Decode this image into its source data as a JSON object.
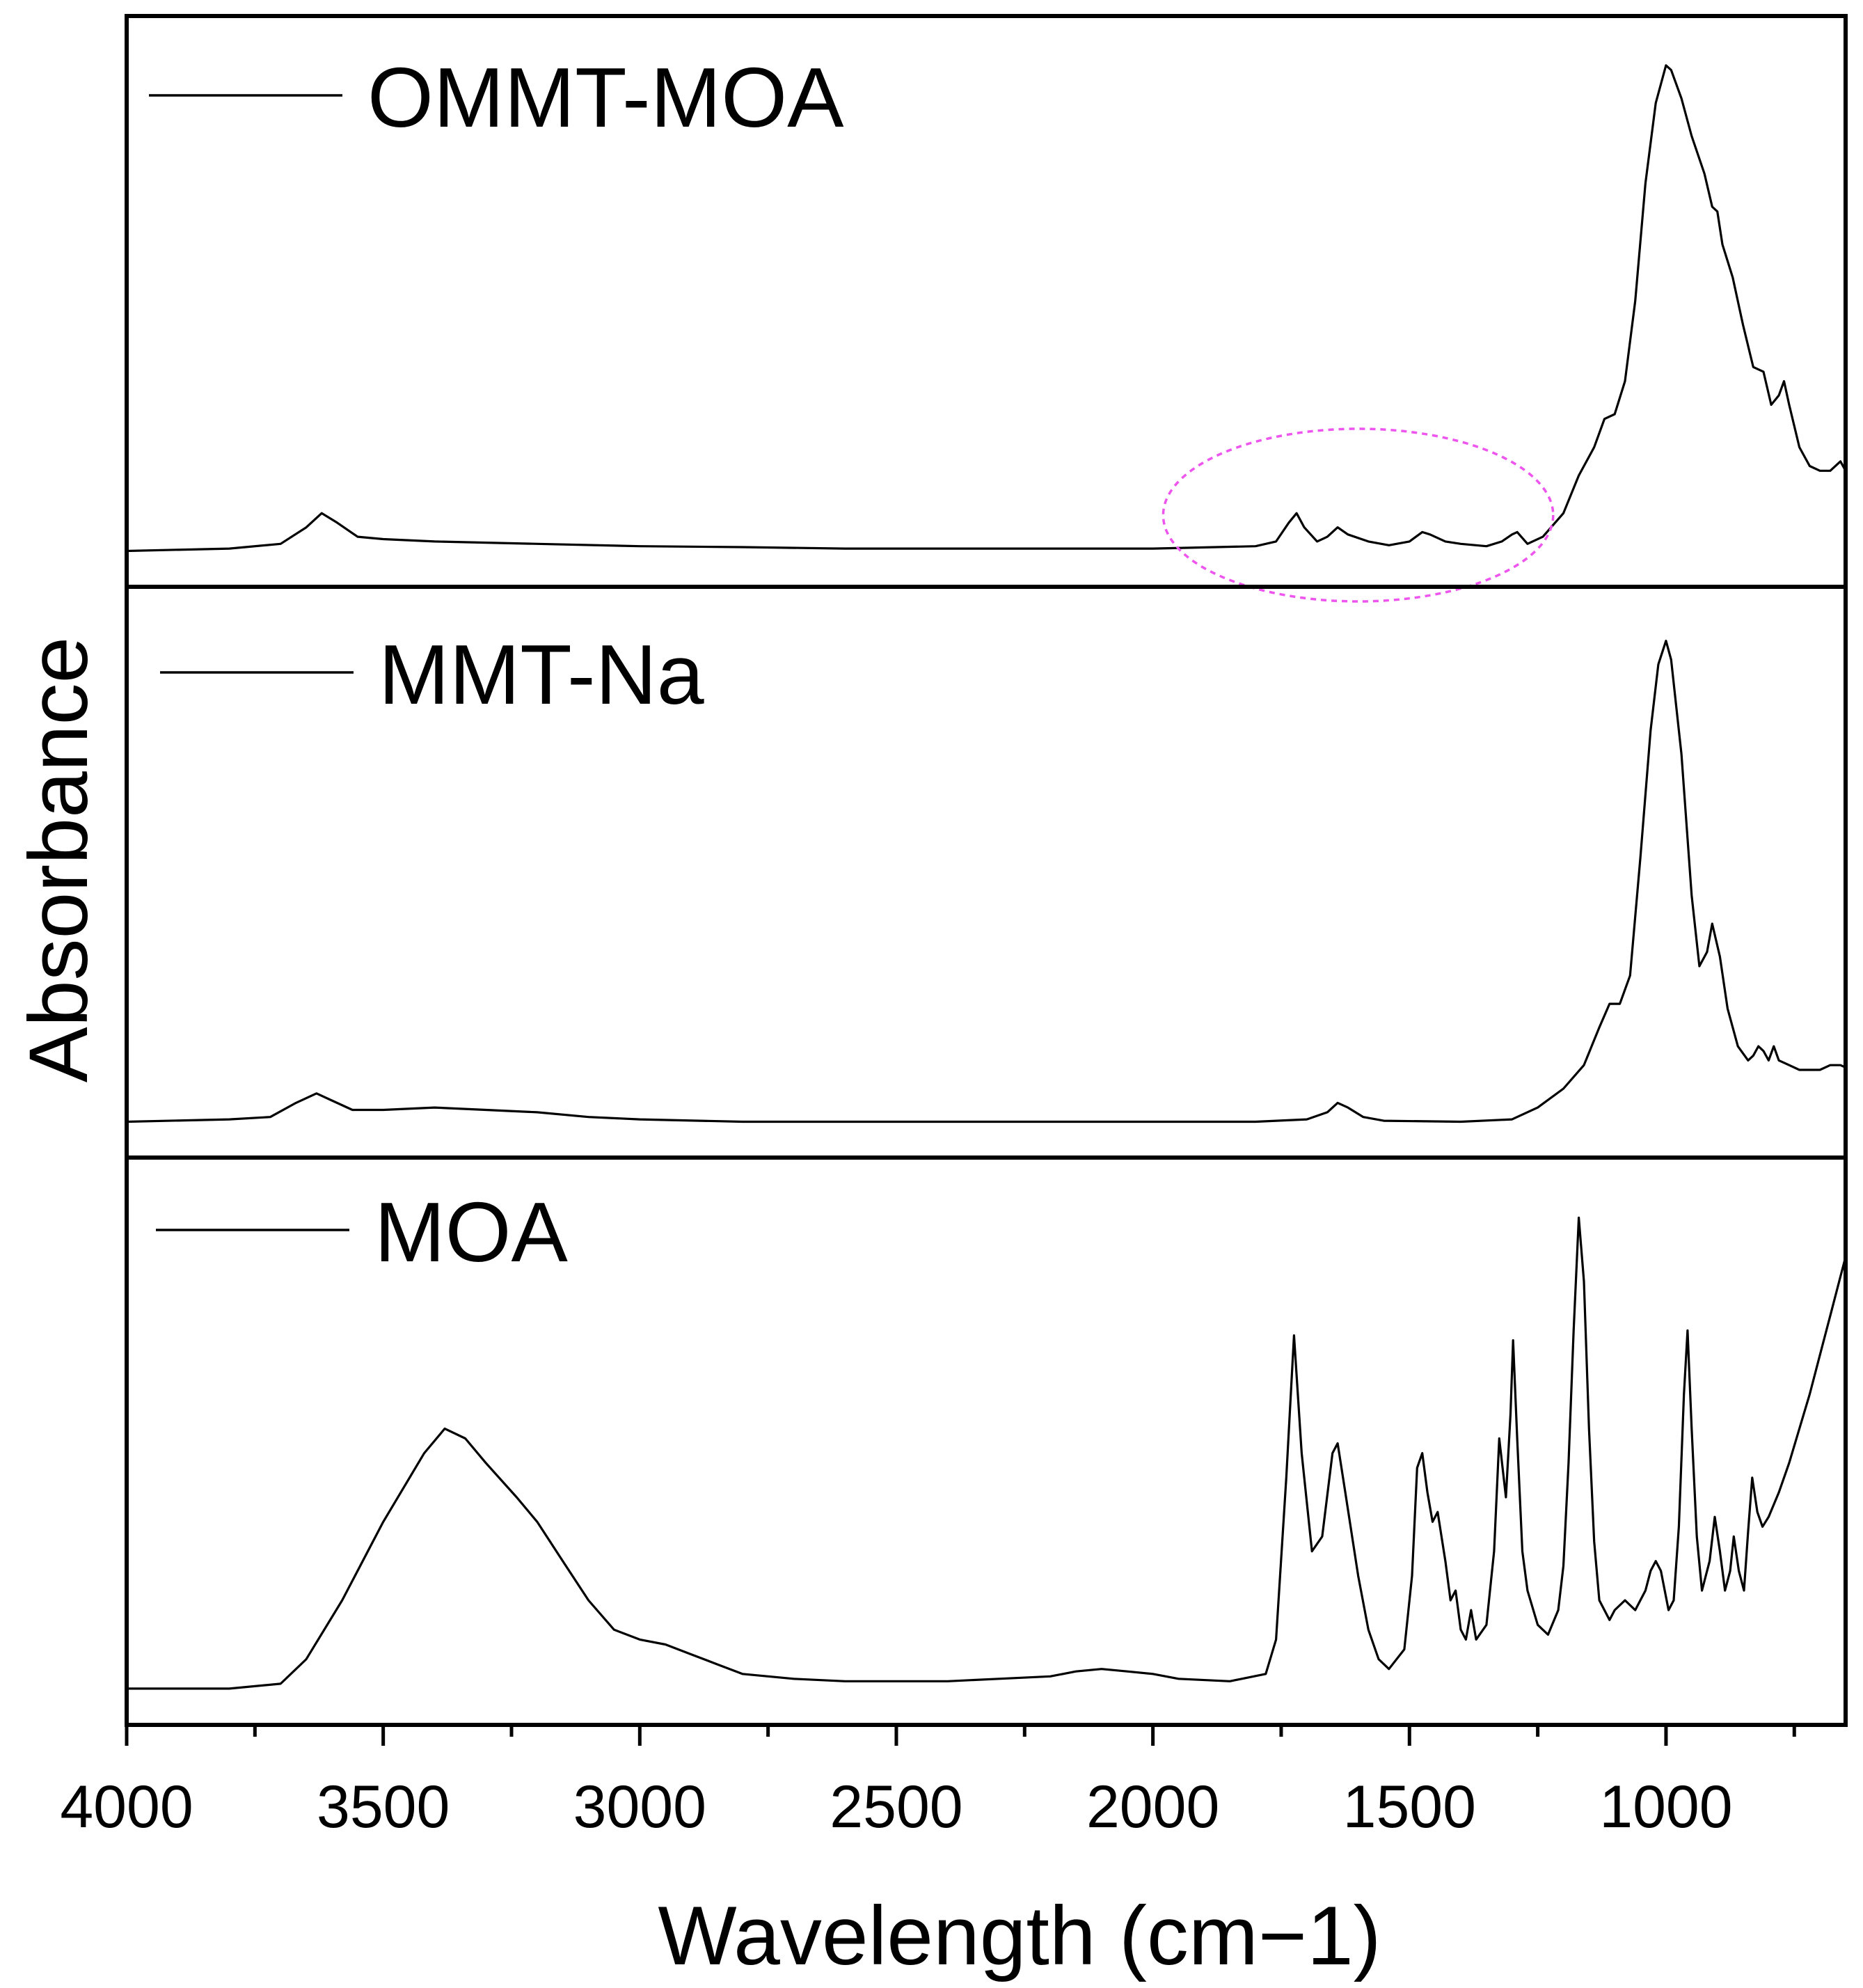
{
  "chart_data": {
    "type": "line",
    "layout": "stacked-panels",
    "xlabel": "Wavelength (cm−1)",
    "ylabel": "Absorbance",
    "xlim": [
      4000,
      650
    ],
    "x_ticks": [
      4000,
      3500,
      3000,
      2500,
      2000,
      1500,
      1000
    ],
    "x_tick_labels": [
      "4000",
      "3500",
      "3000",
      "2500",
      "2000",
      "1500",
      "1000"
    ],
    "minor_ticks": [
      3750,
      3250,
      2750,
      2250,
      1750,
      1250,
      750
    ],
    "y_ticks_shown": false,
    "highlight_region": {
      "x_center": 1600,
      "x_half_width": 380,
      "series": "OMMT-MOA",
      "style": "dashed-ellipse",
      "color": "#ee55ee"
    },
    "series": [
      {
        "name": "OMMT-MOA",
        "legend": "OMMT-MOA",
        "ylim": [
          0,
          1.1
        ],
        "points": [
          [
            4000,
            0.02
          ],
          [
            3800,
            0.025
          ],
          [
            3700,
            0.035
          ],
          [
            3650,
            0.07
          ],
          [
            3620,
            0.1
          ],
          [
            3590,
            0.08
          ],
          [
            3550,
            0.05
          ],
          [
            3500,
            0.045
          ],
          [
            3400,
            0.04
          ],
          [
            3200,
            0.035
          ],
          [
            3000,
            0.03
          ],
          [
            2800,
            0.028
          ],
          [
            2600,
            0.025
          ],
          [
            2400,
            0.025
          ],
          [
            2200,
            0.025
          ],
          [
            2000,
            0.025
          ],
          [
            1800,
            0.03
          ],
          [
            1760,
            0.04
          ],
          [
            1735,
            0.08
          ],
          [
            1720,
            0.1
          ],
          [
            1705,
            0.07
          ],
          [
            1680,
            0.04
          ],
          [
            1660,
            0.05
          ],
          [
            1640,
            0.07
          ],
          [
            1620,
            0.055
          ],
          [
            1580,
            0.04
          ],
          [
            1540,
            0.032
          ],
          [
            1500,
            0.04
          ],
          [
            1475,
            0.06
          ],
          [
            1460,
            0.055
          ],
          [
            1430,
            0.04
          ],
          [
            1400,
            0.035
          ],
          [
            1350,
            0.03
          ],
          [
            1320,
            0.04
          ],
          [
            1300,
            0.055
          ],
          [
            1290,
            0.06
          ],
          [
            1270,
            0.035
          ],
          [
            1240,
            0.05
          ],
          [
            1200,
            0.1
          ],
          [
            1170,
            0.18
          ],
          [
            1140,
            0.24
          ],
          [
            1120,
            0.3
          ],
          [
            1100,
            0.31
          ],
          [
            1080,
            0.38
          ],
          [
            1060,
            0.55
          ],
          [
            1040,
            0.8
          ],
          [
            1020,
            0.97
          ],
          [
            1000,
            1.05
          ],
          [
            990,
            1.04
          ],
          [
            970,
            0.98
          ],
          [
            950,
            0.9
          ],
          [
            925,
            0.82
          ],
          [
            910,
            0.75
          ],
          [
            900,
            0.74
          ],
          [
            890,
            0.67
          ],
          [
            870,
            0.6
          ],
          [
            850,
            0.5
          ],
          [
            830,
            0.41
          ],
          [
            810,
            0.4
          ],
          [
            795,
            0.33
          ],
          [
            780,
            0.35
          ],
          [
            770,
            0.38
          ],
          [
            760,
            0.33
          ],
          [
            740,
            0.24
          ],
          [
            720,
            0.2
          ],
          [
            700,
            0.19
          ],
          [
            680,
            0.19
          ],
          [
            660,
            0.21
          ],
          [
            650,
            0.19
          ]
        ]
      },
      {
        "name": "MMT-Na",
        "legend": "MMT-Na",
        "ylim": [
          0,
          1.1
        ],
        "points": [
          [
            4000,
            0.02
          ],
          [
            3800,
            0.025
          ],
          [
            3720,
            0.03
          ],
          [
            3670,
            0.06
          ],
          [
            3630,
            0.08
          ],
          [
            3600,
            0.065
          ],
          [
            3560,
            0.045
          ],
          [
            3500,
            0.045
          ],
          [
            3400,
            0.05
          ],
          [
            3300,
            0.045
          ],
          [
            3200,
            0.04
          ],
          [
            3100,
            0.03
          ],
          [
            3000,
            0.025
          ],
          [
            2800,
            0.02
          ],
          [
            2600,
            0.02
          ],
          [
            2400,
            0.02
          ],
          [
            2200,
            0.02
          ],
          [
            2000,
            0.02
          ],
          [
            1800,
            0.02
          ],
          [
            1700,
            0.025
          ],
          [
            1660,
            0.04
          ],
          [
            1640,
            0.06
          ],
          [
            1620,
            0.05
          ],
          [
            1590,
            0.03
          ],
          [
            1550,
            0.022
          ],
          [
            1400,
            0.02
          ],
          [
            1300,
            0.025
          ],
          [
            1250,
            0.05
          ],
          [
            1200,
            0.09
          ],
          [
            1160,
            0.14
          ],
          [
            1130,
            0.22
          ],
          [
            1110,
            0.27
          ],
          [
            1090,
            0.27
          ],
          [
            1070,
            0.33
          ],
          [
            1050,
            0.58
          ],
          [
            1030,
            0.85
          ],
          [
            1015,
            0.99
          ],
          [
            1000,
            1.04
          ],
          [
            990,
            1.0
          ],
          [
            970,
            0.8
          ],
          [
            950,
            0.5
          ],
          [
            935,
            0.35
          ],
          [
            920,
            0.38
          ],
          [
            910,
            0.44
          ],
          [
            895,
            0.37
          ],
          [
            880,
            0.26
          ],
          [
            860,
            0.18
          ],
          [
            840,
            0.15
          ],
          [
            830,
            0.16
          ],
          [
            820,
            0.18
          ],
          [
            810,
            0.17
          ],
          [
            800,
            0.15
          ],
          [
            790,
            0.18
          ],
          [
            780,
            0.15
          ],
          [
            760,
            0.14
          ],
          [
            740,
            0.13
          ],
          [
            700,
            0.13
          ],
          [
            680,
            0.14
          ],
          [
            660,
            0.14
          ],
          [
            650,
            0.135
          ]
        ]
      },
      {
        "name": "MOA",
        "legend": "MOA",
        "ylim": [
          0,
          1.05
        ],
        "points": [
          [
            4000,
            0.02
          ],
          [
            3800,
            0.02
          ],
          [
            3700,
            0.03
          ],
          [
            3650,
            0.08
          ],
          [
            3580,
            0.2
          ],
          [
            3500,
            0.36
          ],
          [
            3420,
            0.5
          ],
          [
            3380,
            0.55
          ],
          [
            3340,
            0.53
          ],
          [
            3300,
            0.48
          ],
          [
            3240,
            0.41
          ],
          [
            3200,
            0.36
          ],
          [
            3150,
            0.28
          ],
          [
            3100,
            0.2
          ],
          [
            3050,
            0.14
          ],
          [
            3000,
            0.12
          ],
          [
            2950,
            0.11
          ],
          [
            2900,
            0.09
          ],
          [
            2850,
            0.07
          ],
          [
            2800,
            0.05
          ],
          [
            2700,
            0.04
          ],
          [
            2600,
            0.035
          ],
          [
            2500,
            0.035
          ],
          [
            2400,
            0.035
          ],
          [
            2300,
            0.04
          ],
          [
            2200,
            0.045
          ],
          [
            2150,
            0.055
          ],
          [
            2100,
            0.06
          ],
          [
            2050,
            0.055
          ],
          [
            2000,
            0.05
          ],
          [
            1950,
            0.04
          ],
          [
            1850,
            0.035
          ],
          [
            1780,
            0.05
          ],
          [
            1760,
            0.12
          ],
          [
            1740,
            0.45
          ],
          [
            1725,
            0.74
          ],
          [
            1710,
            0.5
          ],
          [
            1690,
            0.3
          ],
          [
            1670,
            0.33
          ],
          [
            1650,
            0.5
          ],
          [
            1640,
            0.52
          ],
          [
            1625,
            0.42
          ],
          [
            1600,
            0.25
          ],
          [
            1580,
            0.14
          ],
          [
            1560,
            0.08
          ],
          [
            1540,
            0.06
          ],
          [
            1510,
            0.1
          ],
          [
            1495,
            0.25
          ],
          [
            1485,
            0.47
          ],
          [
            1475,
            0.5
          ],
          [
            1465,
            0.42
          ],
          [
            1455,
            0.36
          ],
          [
            1445,
            0.38
          ],
          [
            1430,
            0.28
          ],
          [
            1420,
            0.2
          ],
          [
            1410,
            0.22
          ],
          [
            1400,
            0.14
          ],
          [
            1390,
            0.12
          ],
          [
            1380,
            0.18
          ],
          [
            1370,
            0.12
          ],
          [
            1350,
            0.15
          ],
          [
            1335,
            0.3
          ],
          [
            1325,
            0.53
          ],
          [
            1312,
            0.41
          ],
          [
            1303,
            0.58
          ],
          [
            1298,
            0.73
          ],
          [
            1290,
            0.53
          ],
          [
            1280,
            0.3
          ],
          [
            1270,
            0.22
          ],
          [
            1250,
            0.15
          ],
          [
            1230,
            0.13
          ],
          [
            1210,
            0.18
          ],
          [
            1200,
            0.27
          ],
          [
            1190,
            0.48
          ],
          [
            1180,
            0.75
          ],
          [
            1170,
            0.98
          ],
          [
            1160,
            0.85
          ],
          [
            1150,
            0.55
          ],
          [
            1140,
            0.32
          ],
          [
            1130,
            0.2
          ],
          [
            1110,
            0.16
          ],
          [
            1100,
            0.18
          ],
          [
            1080,
            0.2
          ],
          [
            1060,
            0.18
          ],
          [
            1040,
            0.22
          ],
          [
            1030,
            0.26
          ],
          [
            1020,
            0.28
          ],
          [
            1010,
            0.26
          ],
          [
            995,
            0.18
          ],
          [
            985,
            0.2
          ],
          [
            975,
            0.35
          ],
          [
            965,
            0.62
          ],
          [
            958,
            0.75
          ],
          [
            950,
            0.55
          ],
          [
            940,
            0.33
          ],
          [
            930,
            0.22
          ],
          [
            915,
            0.28
          ],
          [
            905,
            0.37
          ],
          [
            895,
            0.3
          ],
          [
            885,
            0.22
          ],
          [
            875,
            0.26
          ],
          [
            868,
            0.33
          ],
          [
            858,
            0.26
          ],
          [
            848,
            0.22
          ],
          [
            840,
            0.34
          ],
          [
            832,
            0.45
          ],
          [
            822,
            0.38
          ],
          [
            812,
            0.35
          ],
          [
            800,
            0.37
          ],
          [
            780,
            0.42
          ],
          [
            760,
            0.48
          ],
          [
            740,
            0.55
          ],
          [
            720,
            0.62
          ],
          [
            700,
            0.7
          ],
          [
            680,
            0.78
          ],
          [
            660,
            0.86
          ],
          [
            650,
            0.9
          ]
        ]
      }
    ]
  }
}
